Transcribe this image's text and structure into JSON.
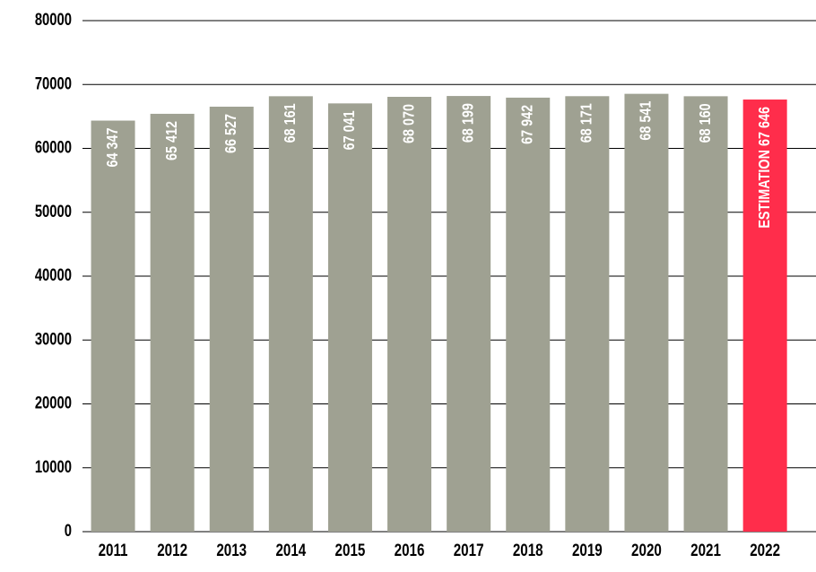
{
  "chart_data": {
    "type": "bar",
    "categories": [
      "2011",
      "2012",
      "2013",
      "2014",
      "2015",
      "2016",
      "2017",
      "2018",
      "2019",
      "2020",
      "2021",
      "2022"
    ],
    "values": [
      64347,
      65412,
      66527,
      68161,
      67041,
      68070,
      68199,
      67942,
      68171,
      68541,
      68160,
      67646
    ],
    "value_labels": [
      "64 347",
      "65 412",
      "66 527",
      "68 161",
      "67 041",
      "68 070",
      "68 199",
      "67 942",
      "68 171",
      "68 541",
      "68 160",
      "ESTIMATION 67 646"
    ],
    "colors": [
      "#9fa192",
      "#9fa192",
      "#9fa192",
      "#9fa192",
      "#9fa192",
      "#9fa192",
      "#9fa192",
      "#9fa192",
      "#9fa192",
      "#9fa192",
      "#9fa192",
      "#ff2d4b"
    ],
    "ylim": [
      0,
      80000
    ],
    "yticks": [
      0,
      10000,
      20000,
      30000,
      40000,
      50000,
      60000,
      70000,
      80000
    ],
    "grid": true
  }
}
